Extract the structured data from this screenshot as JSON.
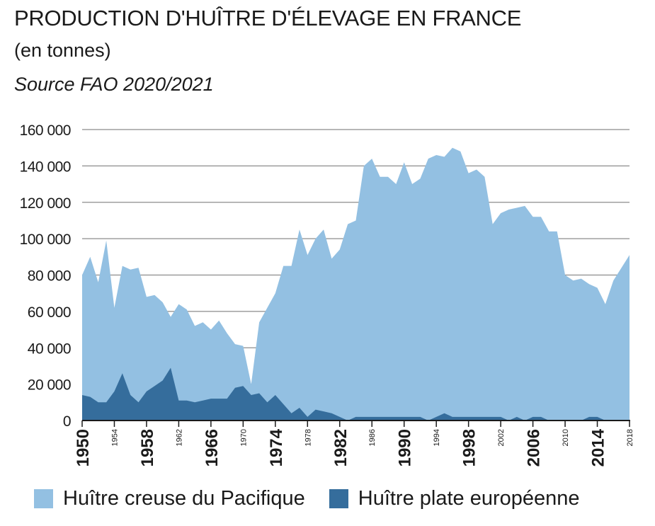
{
  "header": {
    "title": "PRODUCTION D'HUÎTRE D'ÉLEVAGE EN FRANCE",
    "subtitle": "(en tonnes)",
    "source": "Source FAO 2020/2021"
  },
  "colors": {
    "pacific": "#93c0e2",
    "flat": "#356d9c",
    "grid": "#8c8c8c",
    "axis": "#1a1a1a"
  },
  "chart_data": {
    "type": "area",
    "stacked": false,
    "xlim": [
      1950,
      2018
    ],
    "ylim": [
      0,
      160000
    ],
    "yticks": [
      {
        "value": 0,
        "label": "0"
      },
      {
        "value": 20000,
        "label": "20 000"
      },
      {
        "value": 40000,
        "label": "40 000"
      },
      {
        "value": 60000,
        "label": "60 000"
      },
      {
        "value": 80000,
        "label": "80 000"
      },
      {
        "value": 100000,
        "label": "100 000"
      },
      {
        "value": 120000,
        "label": "120 000"
      },
      {
        "value": 140000,
        "label": "140 000"
      },
      {
        "value": 160000,
        "label": "160 000"
      }
    ],
    "xticks_major": [
      1950,
      1958,
      1966,
      1974,
      1982,
      1990,
      1998,
      2006,
      2014
    ],
    "xticks_minor": [
      1954,
      1962,
      1970,
      1978,
      1986,
      1994,
      2002,
      2010,
      2018
    ],
    "grid": "horizontal",
    "legend_position": "bottom",
    "x": [
      1950,
      1951,
      1952,
      1953,
      1954,
      1955,
      1956,
      1957,
      1958,
      1959,
      1960,
      1961,
      1962,
      1963,
      1964,
      1965,
      1966,
      1967,
      1968,
      1969,
      1970,
      1971,
      1972,
      1973,
      1974,
      1975,
      1976,
      1977,
      1978,
      1979,
      1980,
      1981,
      1982,
      1983,
      1984,
      1985,
      1986,
      1987,
      1988,
      1989,
      1990,
      1991,
      1992,
      1993,
      1994,
      1995,
      1996,
      1997,
      1998,
      1999,
      2000,
      2001,
      2002,
      2003,
      2004,
      2005,
      2006,
      2007,
      2008,
      2009,
      2010,
      2011,
      2012,
      2013,
      2014,
      2015,
      2016,
      2017,
      2018
    ],
    "series": [
      {
        "name": "Huître creuse du Pacifique",
        "color": "#93c0e2",
        "values": [
          80000,
          90000,
          76000,
          99000,
          62000,
          85000,
          83000,
          84000,
          68000,
          69000,
          65000,
          57000,
          64000,
          61000,
          52000,
          54000,
          50000,
          55000,
          48000,
          42000,
          41000,
          20000,
          54000,
          62000,
          70000,
          85000,
          85000,
          105000,
          91000,
          100000,
          105000,
          89000,
          94000,
          108000,
          110000,
          140000,
          144000,
          134000,
          134000,
          130000,
          142000,
          130000,
          133000,
          144000,
          146000,
          145000,
          150000,
          148000,
          136000,
          138000,
          134000,
          108000,
          114000,
          116000,
          117000,
          118000,
          112000,
          112000,
          104000,
          104000,
          80000,
          77000,
          78000,
          75000,
          73000,
          64000,
          77000,
          84000,
          91000
        ]
      },
      {
        "name": "Huître plate européenne",
        "color": "#356d9c",
        "values": [
          14000,
          13000,
          10000,
          10000,
          16000,
          26000,
          14000,
          10000,
          16000,
          19000,
          22000,
          29000,
          11000,
          11000,
          10000,
          11000,
          12000,
          12000,
          12000,
          18000,
          19000,
          14000,
          15000,
          10000,
          14000,
          9000,
          4000,
          7000,
          2000,
          6000,
          5000,
          4000,
          2000,
          0,
          2000,
          2000,
          2000,
          2000,
          2000,
          2000,
          2000,
          2000,
          2000,
          0,
          2000,
          4000,
          2000,
          2000,
          2000,
          2000,
          2000,
          2000,
          2000,
          0,
          2000,
          0,
          2000,
          2000,
          0,
          0,
          0,
          0,
          0,
          2000,
          2000,
          0,
          0,
          0,
          0
        ]
      }
    ]
  }
}
